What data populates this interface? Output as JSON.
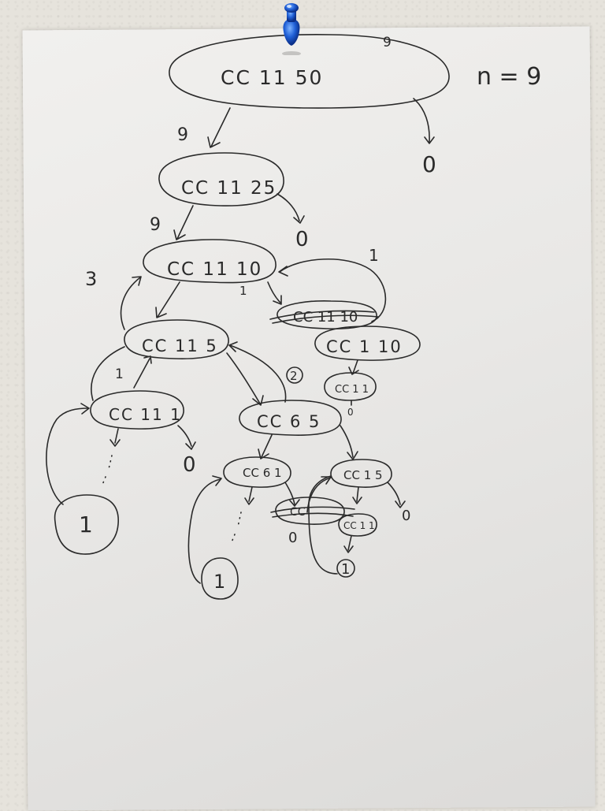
{
  "sheet": {
    "header_note": "n = 9",
    "nodes": {
      "root": "CC 11 50",
      "cc_11_25": "CC 11 25",
      "cc_11_10": "CC 11 10",
      "cc_11_10_struck": "CC 11 10",
      "cc_1_10": "CC 1 10",
      "cc_1_1_a": "CC 1 1",
      "cc_11_5": "CC 11 5",
      "cc_11_1": "CC 11 1",
      "cc_6_5": "CC 6 5",
      "cc_6_1": "CC 6 1",
      "cc_1_5": "CC 1 5",
      "cc_struck_small": "CC",
      "cc_1_1_b": "CC 1 1"
    },
    "values": {
      "root_top": "9",
      "root_right": "0",
      "cc_11_25_in": "9",
      "cc_11_25_right": "0",
      "cc_11_10_in": "9",
      "cc_11_10_left": "3",
      "cc_11_10_mid": "1",
      "loop_right": "1",
      "cc_11_5_up": "1",
      "cc_11_1_right": "0",
      "cc_1_1_a_out": "0",
      "circled_two": "2",
      "struck_small_out": "0",
      "cc_1_5_right": "0",
      "leaf_left": "1",
      "leaf_mid": "1",
      "leaf_right": "1"
    }
  }
}
